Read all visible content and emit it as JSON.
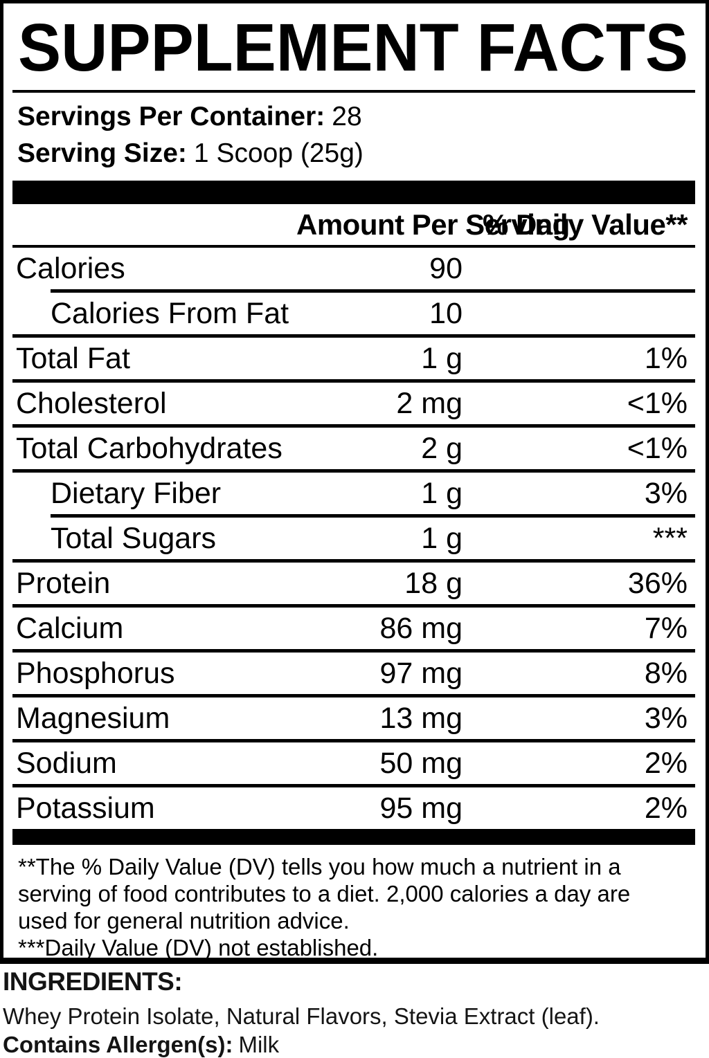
{
  "title": "SUPPLEMENT FACTS",
  "serving_info": {
    "servings_label": "Servings Per Container:",
    "servings_value": "28",
    "size_label": "Serving Size:",
    "size_value": "1 Scoop (25g)"
  },
  "table": {
    "header": {
      "amount": "Amount Per Serving",
      "daily_value": "% Daily Value**"
    },
    "rows": [
      {
        "label": "Calories",
        "amount": "90",
        "dv": ""
      },
      {
        "label": "Calories From Fat",
        "amount": "10",
        "dv": ""
      },
      {
        "label": "Total Fat",
        "amount": "1 g",
        "dv": "1%"
      },
      {
        "label": "Cholesterol",
        "amount": "2 mg",
        "dv": "<1%"
      },
      {
        "label": "Total Carbohydrates",
        "amount": "2 g",
        "dv": "<1%"
      },
      {
        "label": "Dietary Fiber",
        "amount": "1 g",
        "dv": "3%"
      },
      {
        "label": "Total Sugars",
        "amount": "1 g",
        "dv": "***"
      },
      {
        "label": "Protein",
        "amount": "18 g",
        "dv": "36%"
      },
      {
        "label": "Calcium",
        "amount": "86 mg",
        "dv": "7%"
      },
      {
        "label": "Phosphorus",
        "amount": "97 mg",
        "dv": "8%"
      },
      {
        "label": "Magnesium",
        "amount": "13 mg",
        "dv": "3%"
      },
      {
        "label": "Sodium",
        "amount": "50 mg",
        "dv": "2%"
      },
      {
        "label": "Potassium",
        "amount": "95 mg",
        "dv": "2%"
      }
    ]
  },
  "footnotes": {
    "lines": [
      "**The % Daily Value (DV) tells you how much a nutrient in a",
      "serving of food contributes to a diet. 2,000 calories a day are",
      "used for general nutrition advice.",
      "***Daily Value (DV) not established."
    ]
  },
  "ingredients": {
    "heading": "INGREDIENTS:",
    "list": "Whey Protein Isolate, Natural Flavors, Stevia Extract (leaf).",
    "allergen_label": "Contains Allergen(s):",
    "allergen_value": "Milk"
  },
  "colors": {
    "ink": "#000000",
    "background": "#ffffff"
  }
}
